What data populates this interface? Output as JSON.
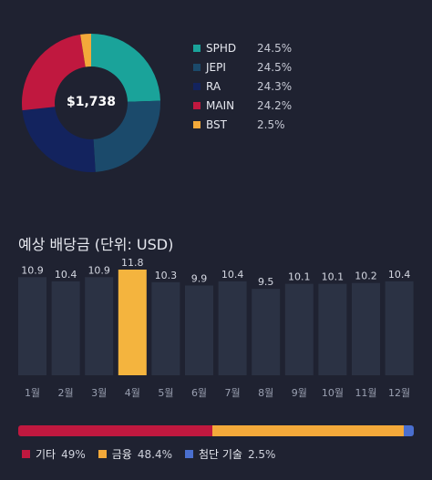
{
  "portfolio": {
    "total": "$1,738",
    "holdings": [
      {
        "ticker": "SPHD",
        "pct_label": "24.5%",
        "pct": 24.5,
        "color": "#1aa39a"
      },
      {
        "ticker": "JEPI",
        "pct_label": "24.5%",
        "pct": 24.5,
        "color": "#1b4a6b"
      },
      {
        "ticker": "RA",
        "pct_label": "24.3%",
        "pct": 24.3,
        "color": "#13235e"
      },
      {
        "ticker": "MAIN",
        "pct_label": "24.2%",
        "pct": 24.2,
        "color": "#c0183f"
      },
      {
        "ticker": "BST",
        "pct_label": "2.5%",
        "pct": 2.5,
        "color": "#f3a93a"
      }
    ]
  },
  "dividends": {
    "title": "예상 배당금 (단위: USD)",
    "highlight_month_index": 3,
    "bar_color": "#2b3244",
    "highlight_color": "#f4b43e"
  },
  "chart_data": {
    "type": "bar",
    "categories": [
      "1월",
      "2월",
      "3월",
      "4월",
      "5월",
      "6월",
      "7월",
      "8월",
      "9월",
      "10월",
      "11월",
      "12월"
    ],
    "values": [
      10.9,
      10.4,
      10.9,
      11.8,
      10.3,
      9.9,
      10.4,
      9.5,
      10.1,
      10.1,
      10.2,
      10.4
    ],
    "value_labels": [
      "10.9",
      "10.4",
      "10.9",
      "11.8",
      "10.3",
      "9.9",
      "10.4",
      "9.5",
      "10.1",
      "10.1",
      "10.2",
      "10.4"
    ],
    "title": "예상 배당금 (단위: USD)",
    "xlabel": "",
    "ylabel": "",
    "ylim": [
      0,
      12
    ]
  },
  "sectors": [
    {
      "name": "기타",
      "pct_label": "49%",
      "pct": 49,
      "color": "#c0183f"
    },
    {
      "name": "금융",
      "pct_label": "48.4%",
      "pct": 48.4,
      "color": "#f3a93a"
    },
    {
      "name": "첨단 기술",
      "pct_label": "2.5%",
      "pct": 2.5,
      "color": "#4a6fcf"
    }
  ]
}
